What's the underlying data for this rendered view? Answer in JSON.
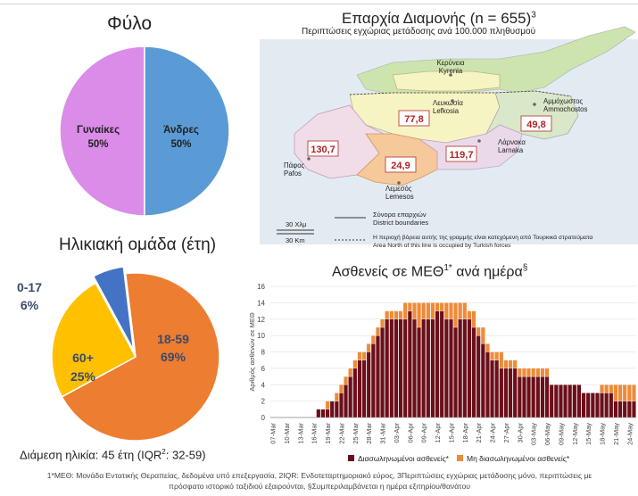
{
  "sex": {
    "title": "Φύλο",
    "slices": [
      {
        "label": "Γυναίκες",
        "pct": "50%",
        "value": 50,
        "color": "#DA8CE8"
      },
      {
        "label": "Άνδρες",
        "pct": "50%",
        "value": 50,
        "color": "#5A9BD5"
      }
    ]
  },
  "age": {
    "title": "Ηλικιακή ομάδα (έτη)",
    "slices": [
      {
        "label": "0-17",
        "pct": "6%",
        "value": 6,
        "color": "#4472C4"
      },
      {
        "label": "18-59",
        "pct": "69%",
        "value": 69,
        "color": "#ED7D31"
      },
      {
        "label": "60+",
        "pct": "25%",
        "value": 25,
        "color": "#FFC000"
      }
    ],
    "median_prefix": "Διάμεση ηλικία: 45 έτη (IQR",
    "median_sup": "2",
    "median_suffix": ": 32-59)"
  },
  "map": {
    "title": "Επαρχία Διαμονής (n = 655)",
    "title_sup": "3",
    "subtitle": "Περιπτώσεις εγχώριας μετάδοσης ανά 100.000 πληθυσμού",
    "districts": [
      {
        "name_gr": "Κερύνεια",
        "name_en": "Kyrenia"
      },
      {
        "name_gr": "Λευκωσία",
        "name_en": "Lefkosia",
        "rate": "77,8"
      },
      {
        "name_gr": "Αμμόχωστος",
        "name_en": "Ammochostos",
        "rate": "49,8"
      },
      {
        "name_gr": "Λάρνακα",
        "name_en": "Larnaka",
        "rate": "119,7"
      },
      {
        "name_gr": "Πάφος",
        "name_en": "Pafos",
        "rate": "130,7"
      },
      {
        "name_gr": "Λεμεσός",
        "name_en": "Lemesos",
        "rate": "24,9"
      }
    ],
    "scale_km_gr": "30 Χλμ",
    "scale_km_en": "30 Km",
    "legend_boundary_gr": "Σύνορα επαρχιών",
    "legend_boundary_en": "District boundaries",
    "legend_north_gr": "Η περιοχή βόρεια αυτής της γραμμής είναι κατεχόμενη από Τουρκικά στρατεύματα",
    "legend_north_en": "Area North of this line is occupied by Turkish forces",
    "colors": {
      "kyrenia": "#F7F4C3",
      "lefkosia": "#F7F4C3",
      "pafos": "#F0DDE8",
      "lemesos": "#F6C99A",
      "larnaka": "#EADAE9",
      "ammochostos": "#D9E8C9",
      "occupied": "#CDE4AE",
      "sea": "#E3EBF2"
    }
  },
  "icu": {
    "title": "Ασθενείς σε ΜΕΘ",
    "title_sup": "1*",
    "title_tail": " ανά ημέρα",
    "title_sect": "§",
    "chart_data": {
      "type": "bar",
      "stacked": true,
      "title": "Ασθενείς σε ΜΕΘ1* ανά ημέρα§",
      "ylabel": "Αριθμός ασθενών σε ΜΕΘ",
      "ylim": [
        0,
        16
      ],
      "yticks": [
        0,
        2,
        4,
        6,
        8,
        10,
        12,
        14,
        16
      ],
      "grid": true,
      "legend_position": "bottom",
      "tick_labels": [
        "07-Mar",
        "10-Mar",
        "13-Mar",
        "16-Mar",
        "19-Mar",
        "22-Mar",
        "25-Mar",
        "28-Mar",
        "31-Mar",
        "03-Apr",
        "06-Apr",
        "09-Apr",
        "12-Apr",
        "15-Apr",
        "18-Apr",
        "21-Apr",
        "24-Apr",
        "27-Apr",
        "30-Apr",
        "03-May",
        "06-May",
        "09-May",
        "12-May",
        "15-May",
        "18-May",
        "21-May",
        "24-May"
      ],
      "start": "07-Mar",
      "end": "24-May",
      "series": [
        {
          "name": "Διασωληνωμένοι ασθενείς*",
          "color": "#6B0F1A",
          "values": [
            0,
            0,
            0,
            0,
            0,
            0,
            0,
            0,
            0,
            0,
            1,
            1,
            1,
            2,
            2,
            3,
            4,
            5,
            6,
            7,
            7,
            8,
            9,
            10,
            11,
            12,
            12,
            12,
            12,
            12,
            13,
            12,
            11,
            12,
            12,
            12,
            13,
            13,
            12,
            12,
            11,
            12,
            12,
            12,
            11,
            10,
            9,
            8,
            7,
            7,
            6,
            6,
            6,
            6,
            5,
            5,
            5,
            5,
            5,
            5,
            5,
            4,
            4,
            4,
            4,
            4,
            4,
            4,
            3,
            3,
            3,
            3,
            3,
            3,
            3,
            2,
            2,
            2,
            2,
            2
          ]
        },
        {
          "name": "Μη διασωληνωμένοι ασθενείς*",
          "color": "#ED8B3A",
          "values": [
            0,
            0,
            0,
            0,
            0,
            0,
            0,
            0,
            0,
            0,
            0,
            0,
            1,
            0,
            1,
            1,
            1,
            1,
            1,
            1,
            1,
            1,
            1,
            1,
            1,
            1,
            1,
            1,
            1,
            2,
            1,
            2,
            3,
            2,
            2,
            2,
            1,
            1,
            2,
            2,
            3,
            2,
            2,
            1,
            2,
            1,
            2,
            1,
            1,
            1,
            2,
            1,
            1,
            1,
            1,
            1,
            1,
            1,
            1,
            1,
            1,
            0,
            0,
            0,
            0,
            0,
            0,
            0,
            0,
            0,
            0,
            0,
            1,
            1,
            1,
            2,
            2,
            2,
            2,
            2
          ]
        }
      ]
    }
  },
  "footnote": {
    "line1": "1*ΜΕΘ: Μονάδα Εντατικής Θεραπείας, δεδομένα υπό επεξεργασία, 2IQR: Ενδοτεταρτημοριακό εύρος, 3Περιπτώσεις εγχώριας μετάδοσης μόνο, περιπτώσεις με",
    "line2": "πρόσφατο ιστορικό ταξιδιού εξαιρούνται, §Συμπεριλαμβάνεται η ημέρα εξιτηρίου/θανάτου"
  }
}
